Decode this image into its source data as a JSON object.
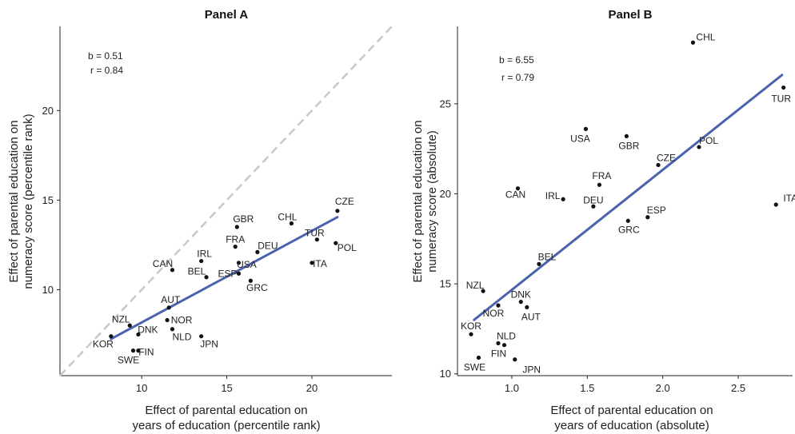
{
  "chart_data": [
    {
      "type": "scatter",
      "title": "Panel A",
      "xlabel": [
        "Effect of parental education on",
        "years of education (percentile rank)"
      ],
      "ylabel": [
        "Effect of parental education on",
        "numeracy score (percentile rank)"
      ],
      "xlim": [
        5.2,
        24.7
      ],
      "ylim": [
        5.2,
        24.7
      ],
      "xticks": [
        10,
        15,
        20
      ],
      "yticks": [
        10,
        15,
        20
      ],
      "annotations": [
        "b = 0.51",
        "r = 0.84"
      ],
      "reference_line": "y = x",
      "fit_line": {
        "x": [
          8.2,
          21.5
        ],
        "y": [
          7.25,
          14.05
        ]
      },
      "points": [
        {
          "label": "KOR",
          "x": 8.2,
          "y": 7.4
        },
        {
          "label": "NZL",
          "x": 9.3,
          "y": 8.0
        },
        {
          "label": "DNK",
          "x": 9.8,
          "y": 7.5
        },
        {
          "label": "SWE",
          "x": 9.5,
          "y": 6.6
        },
        {
          "label": "FIN",
          "x": 9.8,
          "y": 6.6
        },
        {
          "label": "AUT",
          "x": 11.6,
          "y": 9.0
        },
        {
          "label": "NOR",
          "x": 11.5,
          "y": 8.3
        },
        {
          "label": "NLD",
          "x": 11.8,
          "y": 7.8
        },
        {
          "label": "JPN",
          "x": 13.5,
          "y": 7.4
        },
        {
          "label": "CAN",
          "x": 11.8,
          "y": 11.1
        },
        {
          "label": "BEL",
          "x": 13.8,
          "y": 10.7
        },
        {
          "label": "IRL",
          "x": 13.5,
          "y": 11.6
        },
        {
          "label": "ESP",
          "x": 15.7,
          "y": 10.9
        },
        {
          "label": "USA",
          "x": 15.7,
          "y": 11.5
        },
        {
          "label": "FRA",
          "x": 15.5,
          "y": 12.4
        },
        {
          "label": "GBR",
          "x": 15.6,
          "y": 13.5
        },
        {
          "label": "GRC",
          "x": 16.4,
          "y": 10.5
        },
        {
          "label": "DEU",
          "x": 16.8,
          "y": 12.1
        },
        {
          "label": "CHL",
          "x": 18.8,
          "y": 13.7
        },
        {
          "label": "ITA",
          "x": 20.0,
          "y": 11.5
        },
        {
          "label": "TUR",
          "x": 20.3,
          "y": 12.8
        },
        {
          "label": "POL",
          "x": 21.4,
          "y": 12.6
        },
        {
          "label": "CZE",
          "x": 21.5,
          "y": 14.4
        }
      ]
    },
    {
      "type": "scatter",
      "title": "Panel B",
      "xlabel": [
        "Effect of parental education on",
        "years of education (absolute)"
      ],
      "ylabel": [
        "Effect of parental education on",
        "numeracy score (absolute)"
      ],
      "xlim": [
        0.64,
        2.86
      ],
      "ylim": [
        9.9,
        29.3
      ],
      "xticks": [
        1.0,
        1.5,
        2.0,
        2.5
      ],
      "xtick_labels": [
        "1.0",
        "1.5",
        "2.0",
        "2.5"
      ],
      "yticks": [
        10,
        15,
        20,
        25
      ],
      "annotations": [
        "b = 6.55",
        "r = 0.79"
      ],
      "fit_line": {
        "x": [
          0.75,
          2.79
        ],
        "y": [
          13.0,
          26.6
        ]
      },
      "points": [
        {
          "label": "KOR",
          "x": 0.73,
          "y": 12.2
        },
        {
          "label": "SWE",
          "x": 0.78,
          "y": 10.9
        },
        {
          "label": "NZL",
          "x": 0.81,
          "y": 14.6
        },
        {
          "label": "NOR",
          "x": 0.91,
          "y": 13.8
        },
        {
          "label": "NLD",
          "x": 0.91,
          "y": 11.7
        },
        {
          "label": "FIN",
          "x": 0.95,
          "y": 11.6
        },
        {
          "label": "JPN",
          "x": 1.02,
          "y": 10.8
        },
        {
          "label": "DNK",
          "x": 1.06,
          "y": 14.0
        },
        {
          "label": "AUT",
          "x": 1.1,
          "y": 13.7
        },
        {
          "label": "CAN",
          "x": 1.04,
          "y": 20.3
        },
        {
          "label": "BEL",
          "x": 1.18,
          "y": 16.1
        },
        {
          "label": "IRL",
          "x": 1.34,
          "y": 19.7
        },
        {
          "label": "USA",
          "x": 1.49,
          "y": 23.6
        },
        {
          "label": "DEU",
          "x": 1.54,
          "y": 19.3
        },
        {
          "label": "FRA",
          "x": 1.58,
          "y": 20.5
        },
        {
          "label": "GBR",
          "x": 1.76,
          "y": 23.2
        },
        {
          "label": "GRC",
          "x": 1.77,
          "y": 18.5
        },
        {
          "label": "ESP",
          "x": 1.9,
          "y": 18.7
        },
        {
          "label": "CZE",
          "x": 1.97,
          "y": 21.6
        },
        {
          "label": "CHL",
          "x": 2.2,
          "y": 28.4
        },
        {
          "label": "POL",
          "x": 2.24,
          "y": 22.6
        },
        {
          "label": "ITA",
          "x": 2.75,
          "y": 19.4
        },
        {
          "label": "TUR",
          "x": 2.8,
          "y": 25.9
        }
      ]
    }
  ]
}
